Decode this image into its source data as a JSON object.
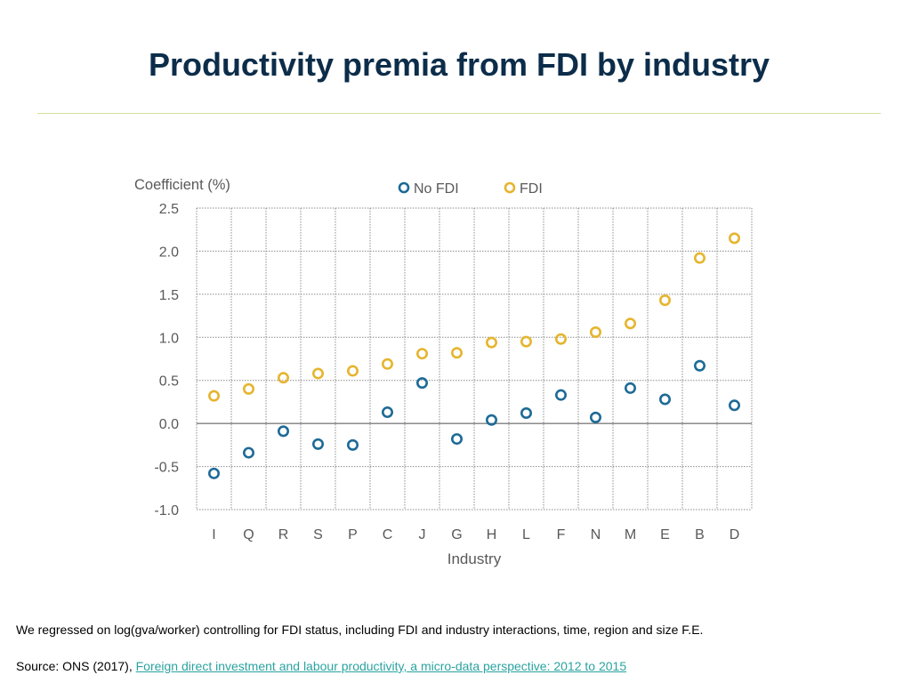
{
  "slide": {
    "title": "Productivity premia from FDI by industry",
    "note": "We regressed on log(gva/worker) controlling for FDI status, including FDI and industry interactions, time, region and size F.E.",
    "source_prefix": "Source: ONS (2017), ",
    "source_link": "Foreign direct investment and labour productivity, a micro-data perspective: 2012 to 2015"
  },
  "colors": {
    "no_fdi": "#1d6a96",
    "fdi": "#e6b52e",
    "title": "#0c2d4a",
    "rule": "#d6e09a",
    "link": "#2aa3a0",
    "axis_text": "#595959",
    "grid": "#8c8c8c"
  },
  "chart_data": {
    "type": "scatter",
    "title": "",
    "ylabel": "Coefficient (%)",
    "xlabel": "Industry",
    "ylim": [
      -1.0,
      2.5
    ],
    "yticks": [
      "2.5",
      "2.0",
      "1.5",
      "1.0",
      "0.5",
      "0.0",
      "-0.5",
      "-1.0"
    ],
    "ytick_values": [
      2.5,
      2.0,
      1.5,
      1.0,
      0.5,
      0.0,
      -0.5,
      -1.0
    ],
    "grid": true,
    "legend": "top",
    "categories": [
      "I",
      "Q",
      "R",
      "S",
      "P",
      "C",
      "J",
      "G",
      "H",
      "L",
      "F",
      "N",
      "M",
      "E",
      "B",
      "D"
    ],
    "series": [
      {
        "name": "No FDI",
        "values": [
          -0.58,
          -0.34,
          -0.09,
          -0.24,
          -0.25,
          0.13,
          0.47,
          -0.18,
          0.04,
          0.12,
          0.33,
          0.07,
          0.41,
          0.28,
          0.67,
          0.21
        ]
      },
      {
        "name": "FDI",
        "values": [
          0.32,
          0.4,
          0.53,
          0.58,
          0.61,
          0.69,
          0.81,
          0.82,
          0.94,
          0.95,
          0.98,
          1.06,
          1.16,
          1.43,
          1.92,
          2.15
        ]
      }
    ]
  }
}
